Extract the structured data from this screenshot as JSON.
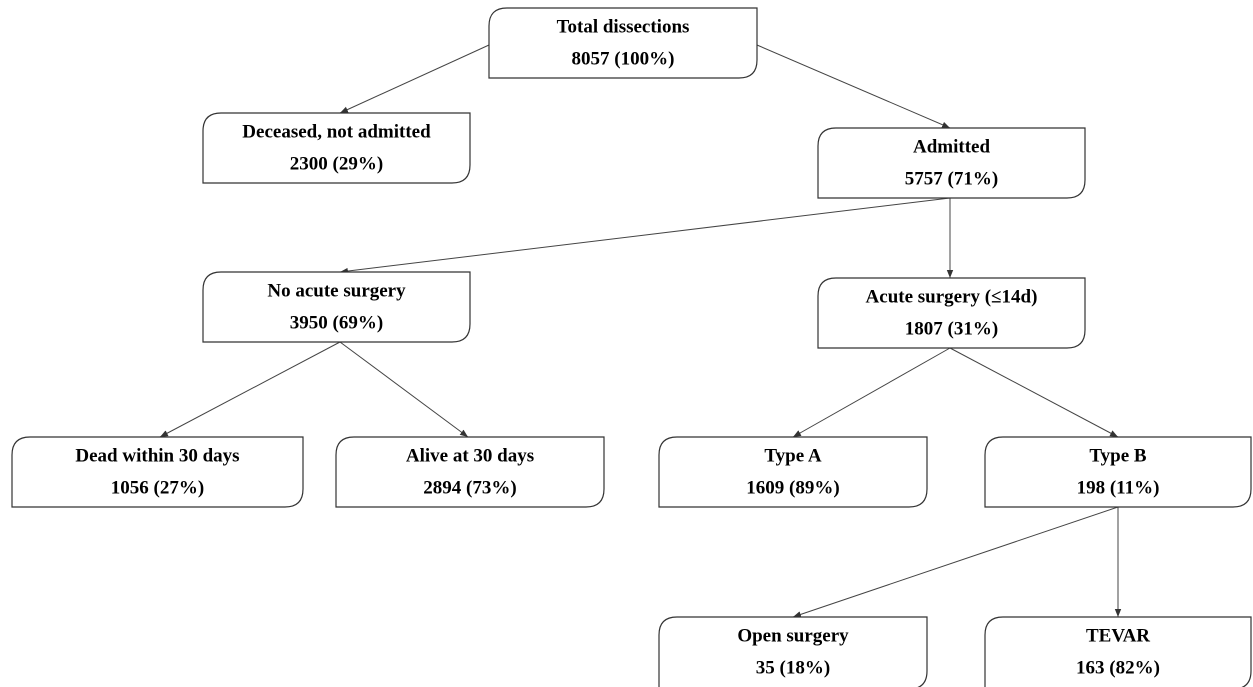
{
  "nodes": [
    {
      "label": "Total dissections",
      "count": "8057 (100%)"
    },
    {
      "label": "Deceased, not admitted",
      "count": "2300 (29%)"
    },
    {
      "label": "Admitted",
      "count": "5757 (71%)"
    },
    {
      "label": "No acute surgery",
      "count": "3950 (69%)"
    },
    {
      "label": "Acute surgery (≤14d)",
      "count": "1807 (31%)"
    },
    {
      "label": "Dead within 30 days",
      "count": "1056 (27%)"
    },
    {
      "label": "Alive at 30 days",
      "count": "2894 (73%)"
    },
    {
      "label": "Type A",
      "count": "1609 (89%)"
    },
    {
      "label": "Type B",
      "count": "198 (11%)"
    },
    {
      "label": "Open surgery",
      "count": "35 (18%)"
    },
    {
      "label": "TEVAR",
      "count": "163 (82%)"
    }
  ]
}
